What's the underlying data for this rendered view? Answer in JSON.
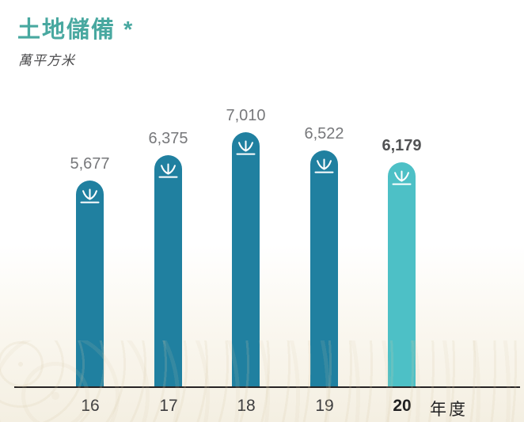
{
  "header": {
    "title": "土地儲備 *",
    "subtitle": "萬平方米"
  },
  "chart_data": {
    "type": "bar",
    "categories": [
      "16",
      "17",
      "18",
      "19",
      "20"
    ],
    "values": [
      5677,
      6375,
      7010,
      6522,
      6179
    ],
    "value_labels": [
      "5,677",
      "6,375",
      "7,010",
      "6,522",
      "6,179"
    ],
    "title": "土地儲備 *",
    "unit": "萬平方米",
    "xlabel": "年度",
    "ylabel": "",
    "ylim": [
      0,
      7500
    ],
    "highlight_index": 4,
    "legend_position": "none",
    "grid": false,
    "bar_icon": "sprout-icon",
    "colors": {
      "bar": "#2080a0",
      "bar_highlight": "#4dc0c6",
      "title": "#48a8a0",
      "value_label": "#77787b",
      "value_label_highlight": "#515254",
      "axis_line": "#262223",
      "icon": "#ffffff"
    }
  }
}
